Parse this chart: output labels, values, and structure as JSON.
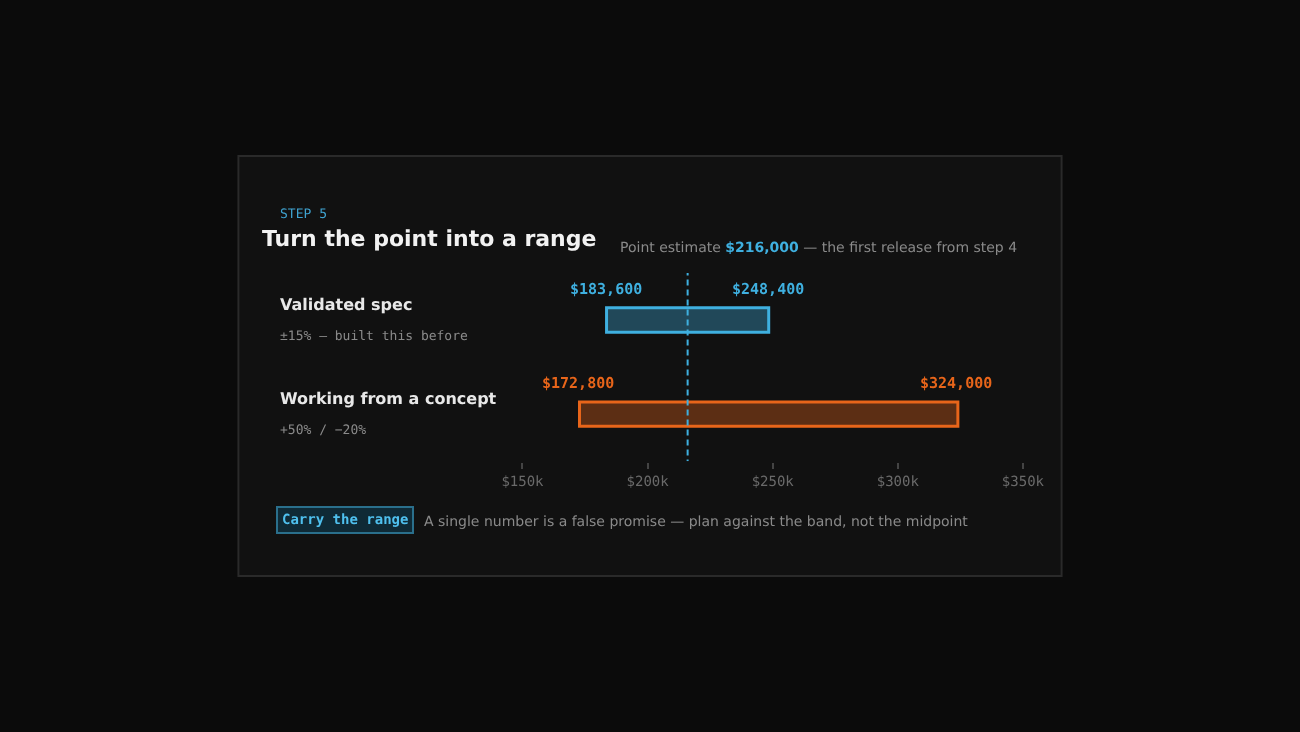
{
  "chart_data": {
    "type": "bar",
    "orientation": "horizontal",
    "title": "Turn the point into a range",
    "subtitle": "STEP 5",
    "categories": [
      "Validated spec",
      "Working from a concept"
    ],
    "base": [
      183600,
      172800
    ],
    "values": [
      64800,
      151200
    ],
    "colors": [
      "#3fb0e0",
      "#e8651a"
    ],
    "xlim": [
      150000,
      350000
    ],
    "xticks": [
      {
        "value": 150000,
        "label": "$150k"
      },
      {
        "value": 200000,
        "label": "$200k"
      },
      {
        "value": 250000,
        "label": "$250k"
      },
      {
        "value": 300000,
        "label": "$300k"
      },
      {
        "value": 350000,
        "label": "$350k"
      }
    ],
    "ref_lines": [
      {
        "axis": "x",
        "value": 216000,
        "color": "#3fb0e0",
        "line_style": "dashed"
      }
    ],
    "annotations": [
      {
        "text": "$183,600",
        "x": 183600,
        "y": "Validated spec"
      },
      {
        "text": "$248,400",
        "x": 248400,
        "y": "Validated spec"
      },
      {
        "text": "$172,800",
        "x": 172800,
        "y": "Working from a concept"
      },
      {
        "text": "$324,000",
        "x": 324000,
        "y": "Working from a concept"
      },
      "Point estimate $216,000 — the first release from step 4",
      "±15% — built this before",
      "+50% / −20%",
      "Carry the range",
      "A single number is a false promise — plan against the band, not the midpoint"
    ],
    "tick_labels": "x",
    "legend": false
  }
}
